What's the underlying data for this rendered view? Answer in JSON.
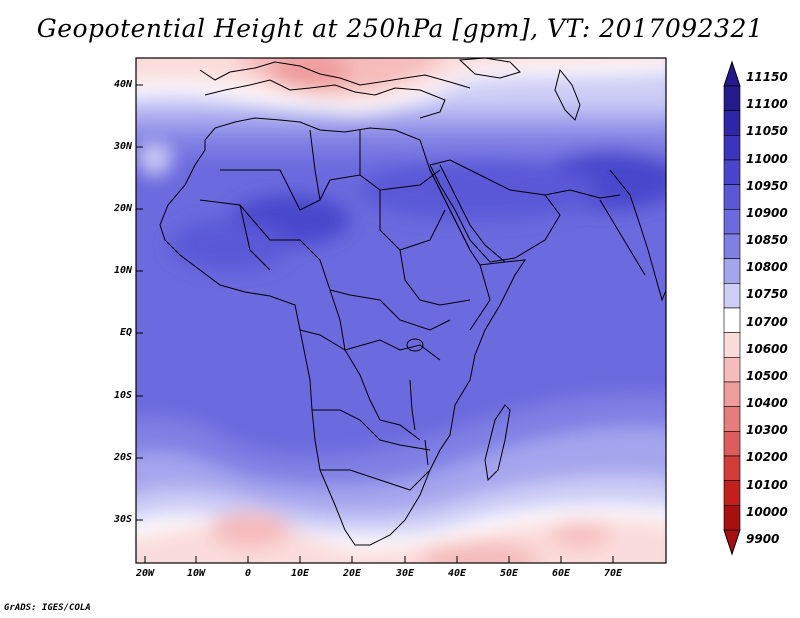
{
  "title": "Geopotential Height at 250hPa [gpm], VT: 2017092321",
  "credit": "GrADS: IGES/COLA",
  "lat_labels": [
    "40N",
    "30N",
    "20N",
    "10N",
    "EQ",
    "10S",
    "20S",
    "30S"
  ],
  "lon_labels": [
    "20W",
    "10W",
    "0",
    "10E",
    "20E",
    "30E",
    "40E",
    "50E",
    "60E",
    "70E"
  ],
  "colorbar": {
    "levels": [
      "11150",
      "11100",
      "11050",
      "11000",
      "10950",
      "10900",
      "10850",
      "10800",
      "10750",
      "10700",
      "10600",
      "10500",
      "10400",
      "10300",
      "10200",
      "10100",
      "10000",
      "9900"
    ],
    "colors": [
      "#241a8c",
      "#2e26a8",
      "#3a34bf",
      "#4a46cc",
      "#5a58d7",
      "#6b6ade",
      "#807fe4",
      "#a5a5ee",
      "#cdcdf6",
      "#ffffff",
      "#fbdcdc",
      "#f6bcbc",
      "#ef9c9c",
      "#e67c7c",
      "#de5c5c",
      "#d43c3c",
      "#c41e1e",
      "#a80f0f"
    ]
  }
}
